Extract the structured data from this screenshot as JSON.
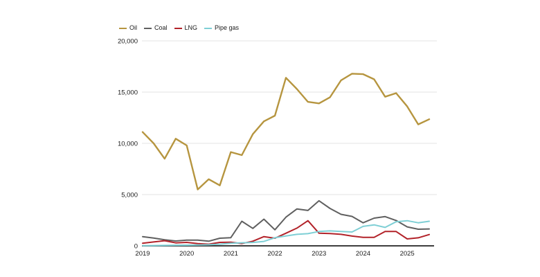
{
  "chart_data": {
    "type": "line",
    "title": "",
    "xlabel": "",
    "ylabel": "",
    "x_frequency": "quarterly",
    "x_range": [
      "2019-Q1",
      "2025-Q3"
    ],
    "x_tick_labels": [
      "2019",
      "2020",
      "2021",
      "2022",
      "2023",
      "2024",
      "2025"
    ],
    "y_ticks": [
      0,
      5000,
      10000,
      15000,
      20000
    ],
    "y_tick_labels": [
      "0",
      "5,000",
      "10,000",
      "15,000",
      "20,000"
    ],
    "ylim": [
      0,
      20000
    ],
    "grid": "horizontal-light",
    "legend_position": "top-left",
    "axis_color": "#3d3d3d",
    "gridline_color": "#e3e3e3",
    "series": [
      {
        "name": "Oil",
        "color": "#b6953f",
        "values": [
          11100,
          10000,
          8500,
          10450,
          9800,
          5500,
          6500,
          5900,
          9150,
          8850,
          10900,
          12150,
          12700,
          16400,
          15300,
          14050,
          13900,
          14500,
          16150,
          16800,
          16750,
          16250,
          14550,
          14900,
          13600,
          11850,
          12350
        ]
      },
      {
        "name": "Coal",
        "color": "#5f5f5f",
        "values": [
          900,
          760,
          585,
          470,
          560,
          560,
          450,
          740,
          800,
          2400,
          1700,
          2600,
          1570,
          2800,
          3600,
          3450,
          4400,
          3650,
          3075,
          2870,
          2250,
          2700,
          2850,
          2470,
          1850,
          1620,
          1650
        ]
      },
      {
        "name": "LNG",
        "color": "#b22229",
        "values": [
          250,
          380,
          500,
          290,
          340,
          220,
          160,
          340,
          350,
          220,
          450,
          900,
          740,
          1230,
          1730,
          2450,
          1230,
          1200,
          1120,
          950,
          830,
          830,
          1400,
          1400,
          675,
          785,
          1100
        ]
      },
      {
        "name": "Pipe gas",
        "color": "#7ecfd5",
        "values": [
          20,
          30,
          40,
          60,
          70,
          90,
          110,
          160,
          250,
          300,
          330,
          430,
          790,
          960,
          1120,
          1190,
          1400,
          1460,
          1400,
          1350,
          1900,
          2050,
          1800,
          2350,
          2450,
          2250,
          2400
        ]
      }
    ]
  }
}
